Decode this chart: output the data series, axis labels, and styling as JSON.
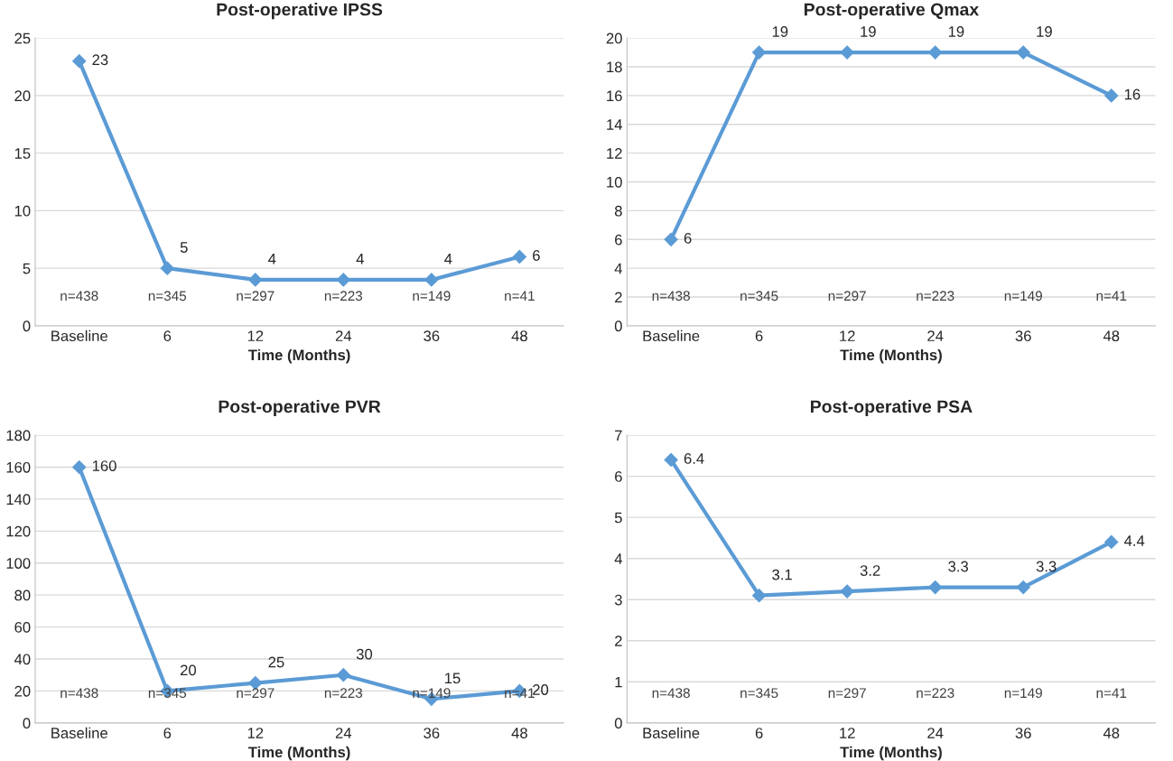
{
  "chart_data": [
    {
      "type": "line",
      "title": "Post-operative IPSS",
      "xlabel": "Time (Months)",
      "categories": [
        "Baseline",
        "6",
        "12",
        "24",
        "36",
        "48"
      ],
      "series": [
        {
          "color": "#5b9bd5",
          "values": [
            23,
            5,
            4,
            4,
            4,
            6
          ]
        }
      ],
      "ylim": [
        0,
        25
      ],
      "yticks": [
        0,
        5,
        10,
        15,
        20,
        25
      ],
      "grid": "y",
      "marker": "diamond",
      "line_style": "solid",
      "data_labels": true,
      "annotations": [
        "n=438",
        "n=345",
        "n=297",
        "n=223",
        "n=149",
        "n=41"
      ]
    },
    {
      "type": "line",
      "title": "Post-operative Qmax",
      "xlabel": "Time (Months)",
      "categories": [
        "Baseline",
        "6",
        "12",
        "24",
        "36",
        "48"
      ],
      "series": [
        {
          "color": "#5b9bd5",
          "values": [
            6,
            19,
            19,
            19,
            19,
            16
          ]
        }
      ],
      "ylim": [
        0,
        20
      ],
      "yticks": [
        0,
        2,
        4,
        6,
        8,
        10,
        12,
        14,
        16,
        18,
        20
      ],
      "grid": "y",
      "marker": "diamond",
      "line_style": "solid",
      "data_labels": true,
      "annotations": [
        "n=438",
        "n=345",
        "n=297",
        "n=223",
        "n=149",
        "n=41"
      ]
    },
    {
      "type": "line",
      "title": "Post-operative PVR",
      "xlabel": "Time (Months)",
      "categories": [
        "Baseline",
        "6",
        "12",
        "24",
        "36",
        "48"
      ],
      "series": [
        {
          "color": "#5b9bd5",
          "values": [
            160,
            20,
            25,
            30,
            15,
            20
          ]
        }
      ],
      "ylim": [
        0,
        180
      ],
      "yticks": [
        0,
        20,
        40,
        60,
        80,
        100,
        120,
        140,
        160,
        180
      ],
      "grid": "y",
      "marker": "diamond",
      "line_style": "solid",
      "data_labels": true,
      "annotations": [
        "n=438",
        "n=345",
        "n=297",
        "n=223",
        "n=149",
        "n=41"
      ]
    },
    {
      "type": "line",
      "title": "Post-operative PSA",
      "xlabel": "Time (Months)",
      "categories": [
        "Baseline",
        "6",
        "12",
        "24",
        "36",
        "48"
      ],
      "series": [
        {
          "color": "#5b9bd5",
          "values": [
            6.4,
            3.1,
            3.2,
            3.3,
            3.3,
            4.4
          ]
        }
      ],
      "ylim": [
        0,
        7
      ],
      "yticks": [
        0,
        1,
        2,
        3,
        4,
        5,
        6,
        7
      ],
      "grid": "y",
      "marker": "diamond",
      "line_style": "solid",
      "data_labels": true,
      "annotations": [
        "n=438",
        "n=345",
        "n=297",
        "n=223",
        "n=149",
        "n=41"
      ]
    }
  ]
}
